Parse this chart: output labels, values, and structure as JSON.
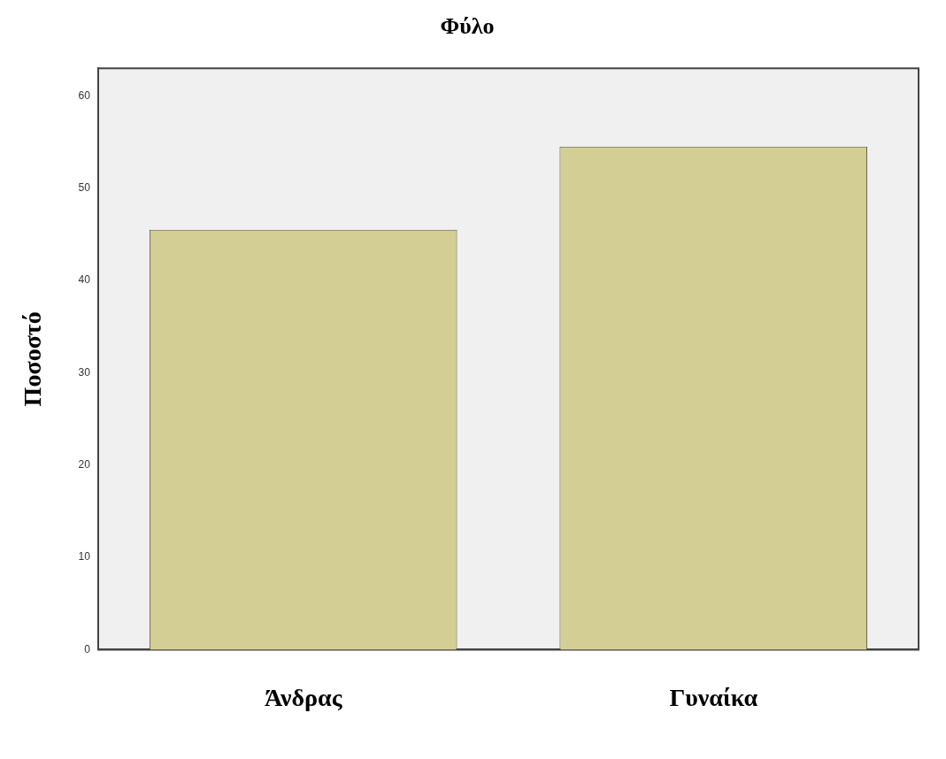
{
  "chart_data": {
    "type": "bar",
    "title": "Φύλο",
    "ylabel": "Ποσοστό",
    "categories": [
      "Άνδρας",
      "Γυναίκα"
    ],
    "values": [
      45.5,
      54.5
    ],
    "color": "#d3cf94",
    "ylim": [
      0,
      63
    ],
    "yticks": [
      0,
      10,
      20,
      30,
      40,
      50,
      60
    ],
    "grid": false,
    "legend": false
  }
}
